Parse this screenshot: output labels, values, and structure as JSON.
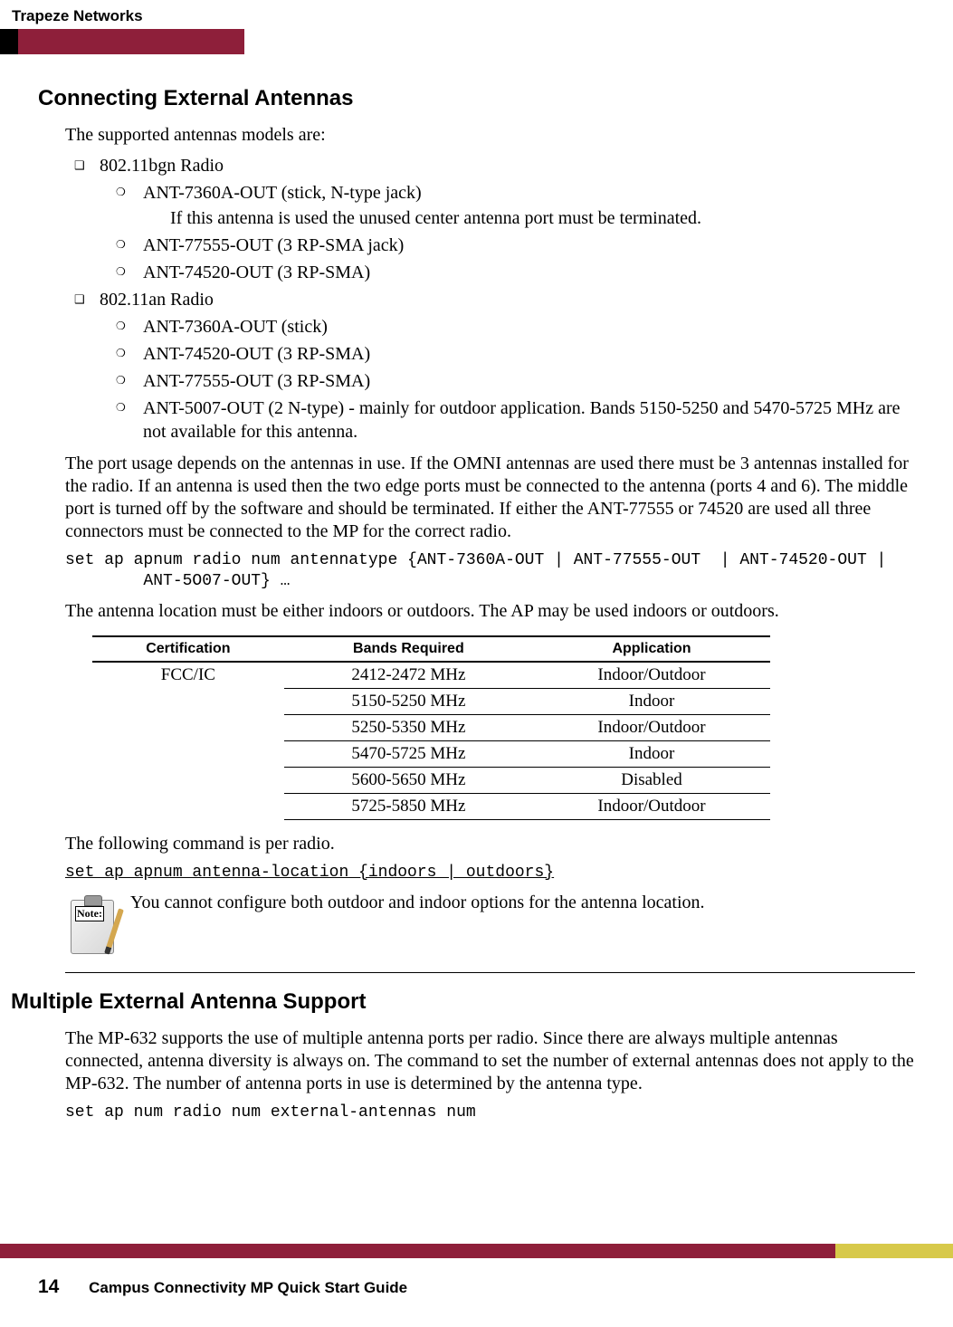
{
  "header": {
    "brand": "Trapeze Networks"
  },
  "section1": {
    "title": "Connecting External Antennas",
    "intro": "The supported antennas models are:",
    "radios": [
      {
        "name": "802.11bgn Radio",
        "items": [
          {
            "text": "ANT-7360A-OUT (stick, N-type jack)",
            "note": "If this antenna is used the unused center antenna port must be terminated."
          },
          {
            "text": "ANT-77555-OUT (3 RP-SMA jack)"
          },
          {
            "text": "ANT-74520-OUT (3 RP-SMA)"
          }
        ]
      },
      {
        "name": "802.11an Radio",
        "items": [
          {
            "text": "ANT-7360A-OUT (stick)"
          },
          {
            "text": "ANT-74520-OUT (3 RP-SMA)"
          },
          {
            "text": "ANT-77555-OUT (3 RP-SMA)"
          },
          {
            "text": "ANT-5007-OUT (2 N-type) - mainly for outdoor application. Bands 5150-5250 and 5470-5725 MHz are not available for this antenna."
          }
        ]
      }
    ],
    "port_usage": "The port usage depends on the antennas in use. If the OMNI antennas are used there must be 3 antennas installed for the radio. If an antenna is used then the two edge ports must be connected to the antenna (ports 4 and 6). The middle port is turned off by the software and should be terminated. If either the ANT-77555 or 74520 are used all three connectors must be connected to the MP for the correct radio.",
    "cmd1_a": "set ap apnum radio num antennatype {ANT-7360A-OUT | ANT-77555-OUT  | ANT-74520-OUT |",
    "cmd1_b": "        ANT-5O07-OUT} …",
    "location_text": "The antenna location must be either indoors or outdoors. The AP may be used indoors or outdoors.",
    "table": {
      "headers": [
        "Certification",
        "Bands Required",
        "Application"
      ],
      "cert": "FCC/IC",
      "rows": [
        {
          "band": "2412-2472 MHz",
          "app": "Indoor/Outdoor"
        },
        {
          "band": "5150-5250 MHz",
          "app": "Indoor"
        },
        {
          "band": "5250-5350 MHz",
          "app": "Indoor/Outdoor"
        },
        {
          "band": "5470-5725 MHz",
          "app": "Indoor"
        },
        {
          "band": "5600-5650 MHz",
          "app": "Disabled"
        },
        {
          "band": "5725-5850 MHz",
          "app": "Indoor/Outdoor"
        }
      ]
    },
    "per_radio": "The following command is per radio.",
    "cmd2": "set ap apnum antenna-location {indoors | outdoors}",
    "note_label": "Note:",
    "note_text": "You cannot configure both outdoor and indoor options for the antenna location."
  },
  "section2": {
    "title": "Multiple External Antenna Support",
    "body": "The MP-632 supports the use of multiple antenna ports per radio. Since there are always multiple antennas connected, antenna diversity is always on. The command to set the number of external antennas does not apply to the MP-632. The number of antenna ports in use is determined by the antenna type.",
    "cmd": "set ap num radio num external-antennas num"
  },
  "footer": {
    "page": "14",
    "title": "Campus Connectivity MP Quick Start Guide"
  }
}
